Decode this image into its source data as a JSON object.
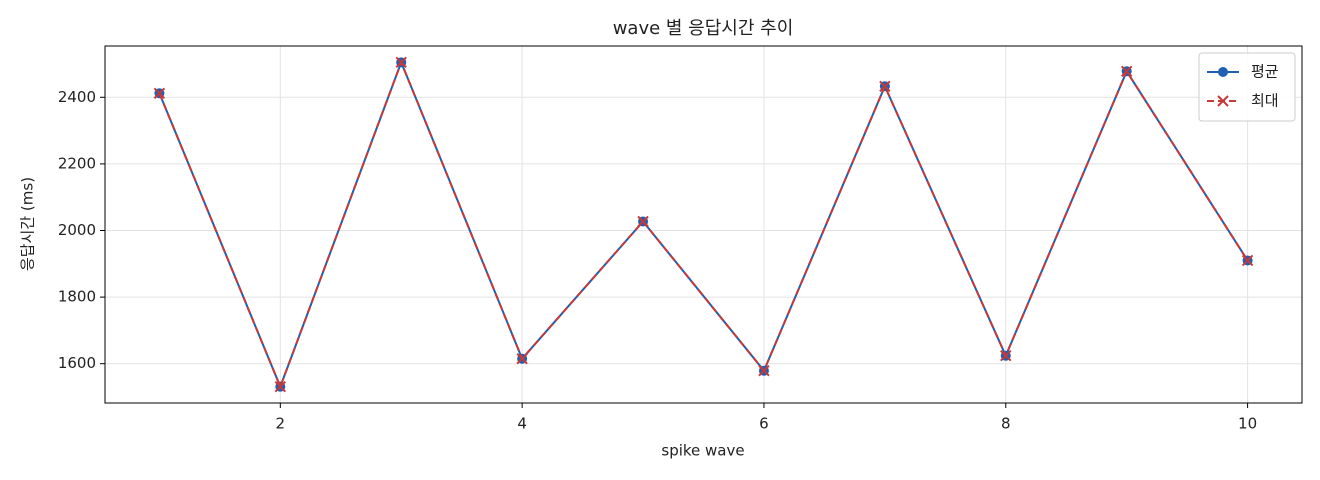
{
  "chart_data": {
    "type": "line",
    "title": "wave 별 응답시간 추이",
    "x_label": "spike wave",
    "y_label": "응답시간 (ms)",
    "x": [
      1,
      2,
      3,
      4,
      5,
      6,
      7,
      8,
      9,
      10
    ],
    "series": [
      {
        "name": "평균",
        "color": "#1f5fb4",
        "marker": "o",
        "dash": "solid",
        "values": [
          2412,
          1531,
          2505,
          1615,
          2027,
          1579,
          2433,
          1624,
          2478,
          1910
        ]
      },
      {
        "name": "최대",
        "color": "#c43a3a",
        "marker": "x",
        "dash": "dashed",
        "values": [
          2412,
          1531,
          2505,
          1615,
          2027,
          1579,
          2433,
          1624,
          2478,
          1910
        ]
      }
    ],
    "xlim": [
      0.55,
      10.45
    ],
    "ylim": [
      1482,
      2554
    ],
    "xticks": [
      2,
      4,
      6,
      8,
      10
    ],
    "yticks": [
      1600,
      1800,
      2000,
      2200,
      2400
    ],
    "grid": true,
    "legend": "upper right"
  }
}
